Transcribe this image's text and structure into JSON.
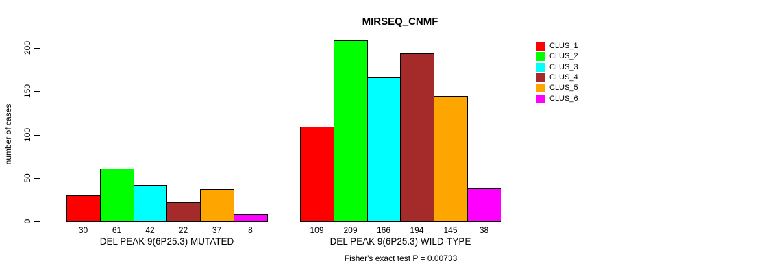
{
  "title": "MIRSEQ_CNMF",
  "chart_data": {
    "type": "bar",
    "title": "MIRSEQ_CNMF",
    "ylabel": "number of cases",
    "xlabel": "",
    "yticks": [
      0,
      50,
      100,
      150,
      200
    ],
    "ylim": [
      0,
      210
    ],
    "grid": false,
    "legend_position": "right",
    "bar_value_labels_shown": true,
    "categories": [
      "DEL PEAK 9(6P25.3) MUTATED",
      "DEL PEAK 9(6P25.3) WILD-TYPE"
    ],
    "series": [
      {
        "name": "CLUS_1",
        "color": "#FF0000",
        "values": [
          30,
          109
        ]
      },
      {
        "name": "CLUS_2",
        "color": "#00FF00",
        "values": [
          61,
          209
        ]
      },
      {
        "name": "CLUS_3",
        "color": "#00FFFF",
        "values": [
          42,
          166
        ]
      },
      {
        "name": "CLUS_4",
        "color": "#A52A2A",
        "values": [
          22,
          194
        ]
      },
      {
        "name": "CLUS_5",
        "color": "#FFA500",
        "values": [
          37,
          145
        ]
      },
      {
        "name": "CLUS_6",
        "color": "#FF00FF",
        "values": [
          8,
          38
        ]
      }
    ],
    "footnote": "Fisher's exact test P = 0.00733"
  }
}
